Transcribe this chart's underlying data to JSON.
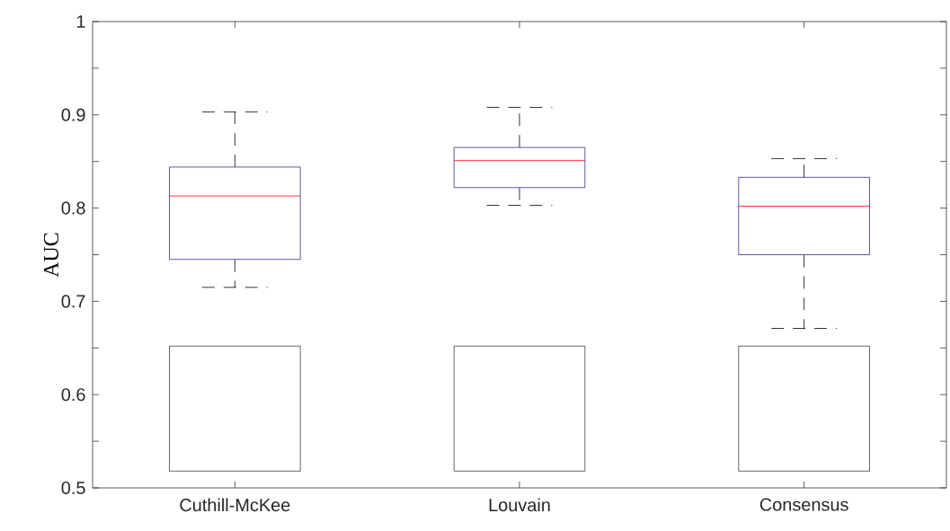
{
  "chart_data": {
    "type": "box",
    "ylabel": "AUC",
    "categories": [
      "Cuthill-McKee",
      "Louvain",
      "Consensus"
    ],
    "series": [
      {
        "color": "#2e3192",
        "boxes": [
          {
            "low": 0.715,
            "q1": 0.745,
            "median": 0.813,
            "q3": 0.844,
            "high": 0.903
          },
          {
            "low": 0.803,
            "q1": 0.822,
            "median": 0.851,
            "q3": 0.865,
            "high": 0.908
          },
          {
            "low": 0.671,
            "q1": 0.75,
            "median": 0.802,
            "q3": 0.833,
            "high": 0.853
          }
        ]
      }
    ],
    "ylim": [
      0.5,
      1
    ],
    "yticks": [
      0.5,
      0.6,
      0.7,
      0.8,
      0.9,
      1
    ]
  }
}
